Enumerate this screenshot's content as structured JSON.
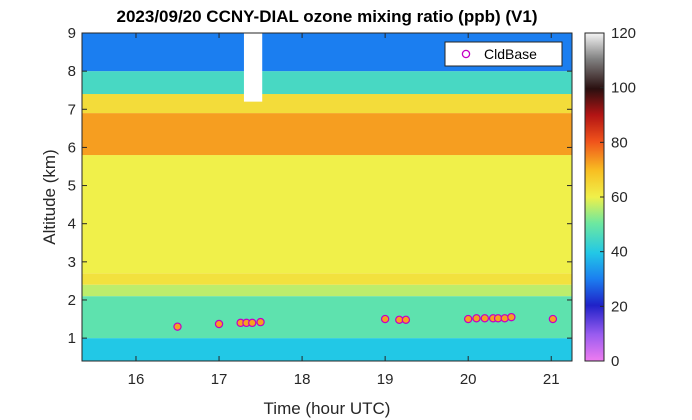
{
  "chart_data": {
    "type": "heatmap",
    "title": "2023/09/20 CCNY-DIAL ozone mixing ratio (ppb) (V1)",
    "xlabel": "Time (hour UTC)",
    "ylabel": "Altitude (km)",
    "xlim": [
      15.35,
      21.25
    ],
    "ylim": [
      0.4,
      9.0
    ],
    "xticks": [
      "16",
      "17",
      "18",
      "19",
      "20",
      "21"
    ],
    "yticks": [
      "1",
      "2",
      "3",
      "4",
      "5",
      "6",
      "7",
      "8",
      "9"
    ],
    "colorbar": {
      "min": 0,
      "max": 120,
      "ticks": [
        "0",
        "20",
        "40",
        "60",
        "80",
        "100",
        "120"
      ]
    },
    "gap": {
      "start": 17.3,
      "end": 17.52,
      "description": "no data gap above 7.2 km near 17.4 UTC"
    },
    "ozone_layers": [
      {
        "altitude_km": [
          0.4,
          1.0
        ],
        "ppb": 40
      },
      {
        "altitude_km": [
          1.0,
          2.1
        ],
        "ppb": 48
      },
      {
        "altitude_km": [
          2.1,
          2.4
        ],
        "ppb": 56
      },
      {
        "altitude_km": [
          2.4,
          2.7
        ],
        "ppb": 63
      },
      {
        "altitude_km": [
          2.7,
          5.8
        ],
        "ppb": 60
      },
      {
        "altitude_km": [
          5.8,
          6.9
        ],
        "ppb": 73
      },
      {
        "altitude_km": [
          6.9,
          7.4
        ],
        "ppb": 64
      },
      {
        "altitude_km": [
          7.4,
          8.0
        ],
        "ppb": 45
      },
      {
        "altitude_km": [
          8.0,
          9.0
        ],
        "ppb": 30
      }
    ],
    "series": [
      {
        "name": "CldBase",
        "points": [
          {
            "x": 16.5,
            "y": 1.3
          },
          {
            "x": 17.0,
            "y": 1.37
          },
          {
            "x": 17.26,
            "y": 1.4
          },
          {
            "x": 17.33,
            "y": 1.4
          },
          {
            "x": 17.4,
            "y": 1.4
          },
          {
            "x": 17.5,
            "y": 1.42
          },
          {
            "x": 19.0,
            "y": 1.5
          },
          {
            "x": 19.17,
            "y": 1.48
          },
          {
            "x": 19.25,
            "y": 1.48
          },
          {
            "x": 20.0,
            "y": 1.5
          },
          {
            "x": 20.1,
            "y": 1.52
          },
          {
            "x": 20.2,
            "y": 1.52
          },
          {
            "x": 20.3,
            "y": 1.52
          },
          {
            "x": 20.36,
            "y": 1.52
          },
          {
            "x": 20.44,
            "y": 1.52
          },
          {
            "x": 20.52,
            "y": 1.55
          },
          {
            "x": 21.02,
            "y": 1.5
          }
        ]
      }
    ],
    "legend_position": "top-right",
    "colormap": "jet-like with white/gray top and magenta bottom"
  }
}
